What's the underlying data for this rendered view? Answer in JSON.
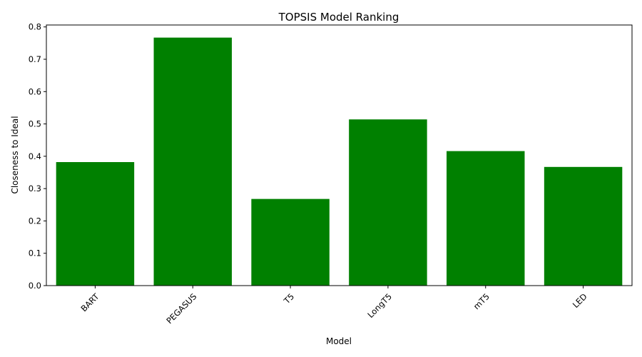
{
  "chart_data": {
    "type": "bar",
    "title": "TOPSIS Model Ranking",
    "xlabel": "Model",
    "ylabel": "Closeness to Ideal",
    "categories": [
      "BART",
      "PEGASUS",
      "T5",
      "LongT5",
      "mT5",
      "LED"
    ],
    "values": [
      0.382,
      0.767,
      0.268,
      0.514,
      0.416,
      0.367
    ],
    "ylim": [
      0,
      0.806
    ],
    "yticks": [
      "0.0",
      "0.1",
      "0.2",
      "0.3",
      "0.4",
      "0.5",
      "0.6",
      "0.7",
      "0.8"
    ],
    "bar_color": "#008000",
    "grid": false,
    "legend": "none",
    "xtick_rotation_deg": 45
  }
}
